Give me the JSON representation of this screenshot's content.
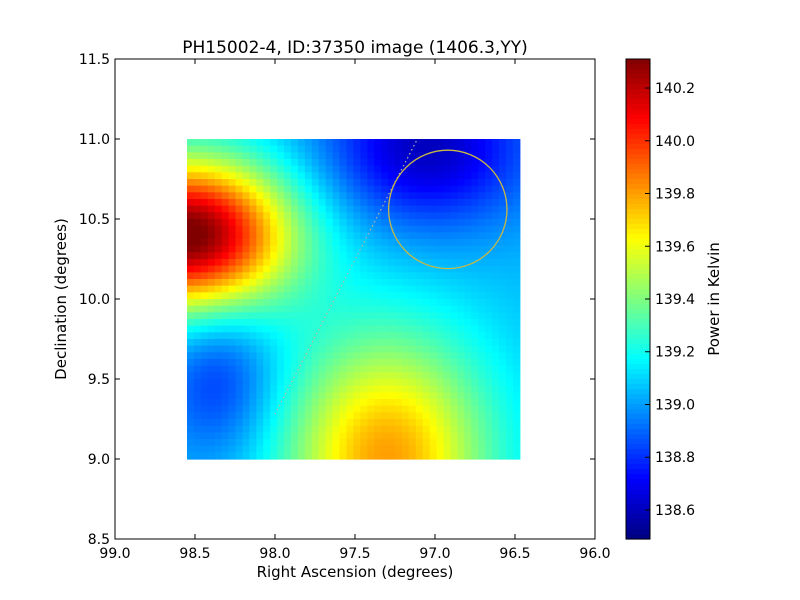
{
  "chart_data": {
    "type": "heatmap",
    "title": "PH15002-4, ID:37350 image (1406.3,YY)",
    "xlabel": "Right Ascension (degrees)",
    "ylabel": "Declination (degrees)",
    "xlim": [
      99.0,
      96.0
    ],
    "ylim": [
      8.5,
      11.5
    ],
    "x_ticks": [
      99.0,
      98.5,
      98.0,
      97.5,
      97.0,
      96.5,
      96.0
    ],
    "x_tick_labels": [
      "99.0",
      "98.5",
      "98.0",
      "97.5",
      "97.0",
      "96.5",
      "96.0"
    ],
    "y_ticks": [
      8.5,
      9.0,
      9.5,
      10.0,
      10.5,
      11.0,
      11.5
    ],
    "y_tick_labels": [
      "8.5",
      "9.0",
      "9.5",
      "10.0",
      "10.5",
      "11.0",
      "11.5"
    ],
    "image_extent": {
      "ra": [
        98.55,
        96.47
      ],
      "dec": [
        9.0,
        11.0
      ]
    },
    "colormap": "jet",
    "colorbar": {
      "label": "Power in Kelvin",
      "range": [
        138.49,
        140.31
      ],
      "ticks": [
        138.6,
        138.8,
        139.0,
        139.2,
        139.4,
        139.6,
        139.8,
        140.0,
        140.2
      ],
      "tick_labels": [
        "138.6",
        "138.8",
        "139.0",
        "139.2",
        "139.4",
        "139.6",
        "139.8",
        "140.0",
        "140.2"
      ]
    },
    "field": {
      "base": 139.05,
      "components": [
        {
          "ra": 98.55,
          "dec": 10.4,
          "amp": 1.3,
          "sra": 0.45,
          "sdec": 0.33
        },
        {
          "ra": 97.3,
          "dec": 9.0,
          "amp": 0.75,
          "sra": 0.45,
          "sdec": 0.55
        },
        {
          "ra": 97.05,
          "dec": 10.95,
          "amp": -0.45,
          "sra": 0.45,
          "sdec": 0.35
        },
        {
          "ra": 98.35,
          "dec": 9.5,
          "amp": -0.25,
          "sra": 0.25,
          "sdec": 0.35
        }
      ]
    },
    "circle": {
      "ra": 96.92,
      "dec": 10.56,
      "radius_deg": 0.37,
      "color": "#c8b845"
    },
    "dotted_line": {
      "from": [
        98.0,
        9.28
      ],
      "to": [
        97.11,
        11.0
      ],
      "color": "#b5b5a0"
    },
    "grid": false
  }
}
